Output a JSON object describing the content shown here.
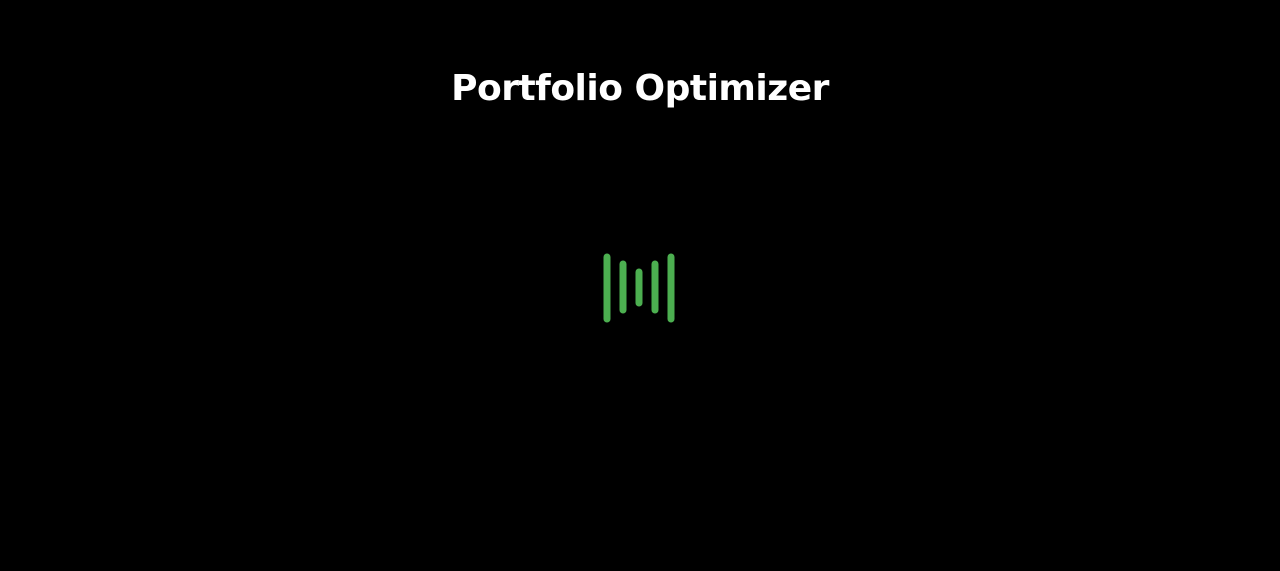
{
  "app": {
    "title": "Portfolio Optimizer"
  },
  "loading_indicator": {
    "icon": "loading-bars-icon",
    "accent_color": "#4caf50",
    "bar_count": 5
  },
  "theme": {
    "background": "#000000",
    "text_color": "#ffffff"
  }
}
